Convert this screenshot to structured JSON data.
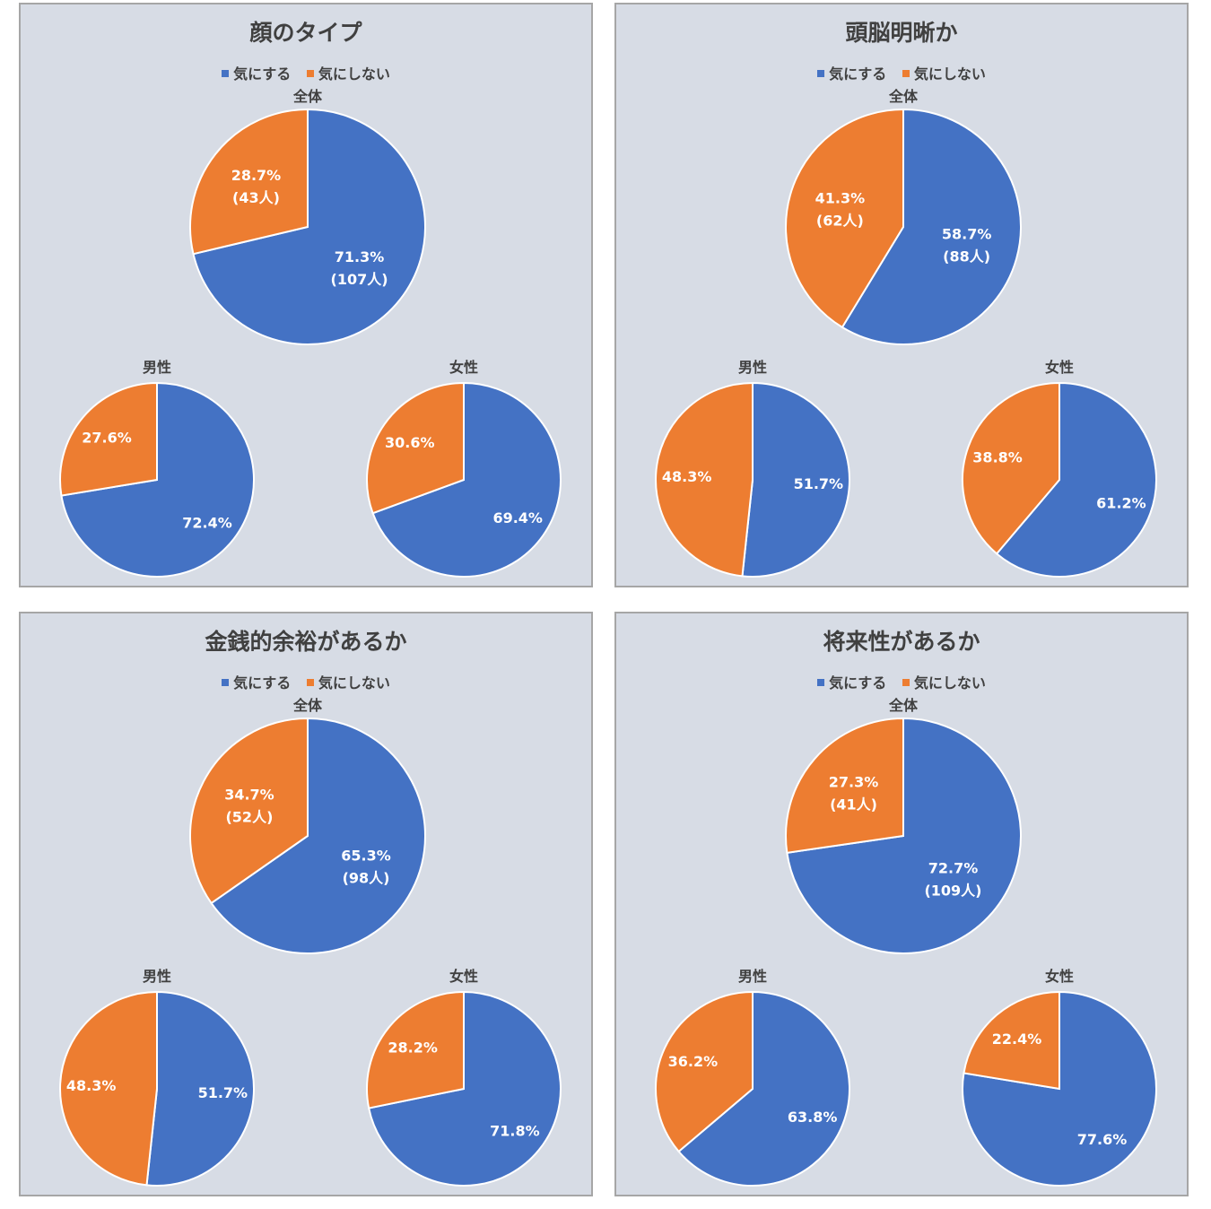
{
  "colors": {
    "care": "#4472c4",
    "not_care": "#ed7d31"
  },
  "legend": {
    "care": "気にする",
    "not_care": "気にしない"
  },
  "chart_data": [
    {
      "type": "pie",
      "title": "顔のタイプ",
      "pies": [
        {
          "label": "全体",
          "values": [
            71.3,
            28.7
          ],
          "labels": [
            [
              "71.3%",
              "(107人)"
            ],
            [
              "28.7%",
              "(43人)"
            ]
          ]
        },
        {
          "label": "男性",
          "values": [
            72.4,
            27.6
          ],
          "labels": [
            [
              "72.4%"
            ],
            [
              "27.6%"
            ]
          ]
        },
        {
          "label": "女性",
          "values": [
            69.4,
            30.6
          ],
          "labels": [
            [
              "69.4%"
            ],
            [
              "30.6%"
            ]
          ]
        }
      ]
    },
    {
      "type": "pie",
      "title": "頭脳明晰か",
      "pies": [
        {
          "label": "全体",
          "values": [
            58.7,
            41.3
          ],
          "labels": [
            [
              "58.7%",
              "(88人)"
            ],
            [
              "41.3%",
              "(62人)"
            ]
          ]
        },
        {
          "label": "男性",
          "values": [
            51.7,
            48.3
          ],
          "labels": [
            [
              "51.7%"
            ],
            [
              "48.3%"
            ]
          ]
        },
        {
          "label": "女性",
          "values": [
            61.2,
            38.8
          ],
          "labels": [
            [
              "61.2%"
            ],
            [
              "38.8%"
            ]
          ]
        }
      ]
    },
    {
      "type": "pie",
      "title": "金銭的余裕があるか",
      "pies": [
        {
          "label": "全体",
          "values": [
            65.3,
            34.7
          ],
          "labels": [
            [
              "65.3%",
              "(98人)"
            ],
            [
              "34.7%",
              "(52人)"
            ]
          ]
        },
        {
          "label": "男性",
          "values": [
            51.7,
            48.3
          ],
          "labels": [
            [
              "51.7%"
            ],
            [
              "48.3%"
            ]
          ]
        },
        {
          "label": "女性",
          "values": [
            71.8,
            28.2
          ],
          "labels": [
            [
              "71.8%"
            ],
            [
              "28.2%"
            ]
          ]
        }
      ]
    },
    {
      "type": "pie",
      "title": "将来性があるか",
      "pies": [
        {
          "label": "全体",
          "values": [
            72.7,
            27.3
          ],
          "labels": [
            [
              "72.7%",
              "(109人)"
            ],
            [
              "27.3%",
              "(41人)"
            ]
          ]
        },
        {
          "label": "男性",
          "values": [
            63.8,
            36.2
          ],
          "labels": [
            [
              "63.8%"
            ],
            [
              "36.2%"
            ]
          ]
        },
        {
          "label": "女性",
          "values": [
            77.6,
            22.4
          ],
          "labels": [
            [
              "77.6%"
            ],
            [
              "22.4%"
            ]
          ]
        }
      ]
    }
  ]
}
